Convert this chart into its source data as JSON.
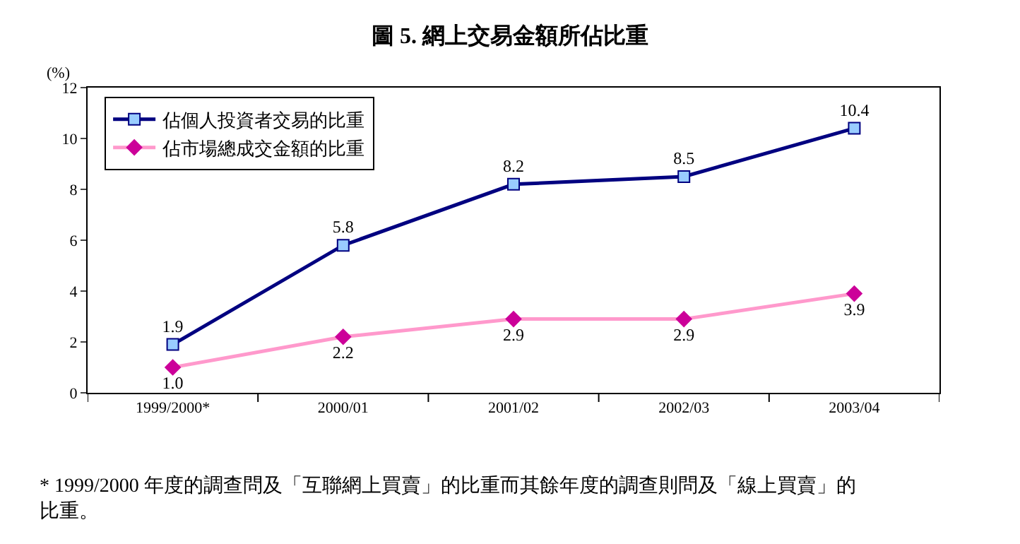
{
  "chart_data": {
    "type": "line",
    "title": "圖 5. 網上交易金額所佔比重",
    "ylabel": "(%)",
    "categories": [
      "1999/2000*",
      "2000/01",
      "2001/02",
      "2002/03",
      "2003/04"
    ],
    "series": [
      {
        "name": "佔個人投資者交易的比重",
        "color": "#000080",
        "marker": "square",
        "values": [
          1.9,
          5.8,
          8.2,
          8.5,
          10.4
        ],
        "value_labels": [
          "1.9",
          "5.8",
          "8.2",
          "8.5",
          "10.4"
        ]
      },
      {
        "name": "佔市場總成交金額的比重",
        "color": "#ff99cc",
        "marker": "diamond",
        "values": [
          1.0,
          2.2,
          2.9,
          2.9,
          3.9
        ],
        "value_labels": [
          "1.0",
          "2.2",
          "2.9",
          "2.9",
          "3.9"
        ]
      }
    ],
    "ylim": [
      0,
      12
    ],
    "yticks": [
      0,
      2,
      4,
      6,
      8,
      10,
      12
    ],
    "legend": "top left",
    "line_style": "solid",
    "annotations": [
      "* 1999/2000 年度的調查問及「互聯網上買賣」的比重而其餘年度的調查則問及「線上買賣」的比重。"
    ]
  }
}
